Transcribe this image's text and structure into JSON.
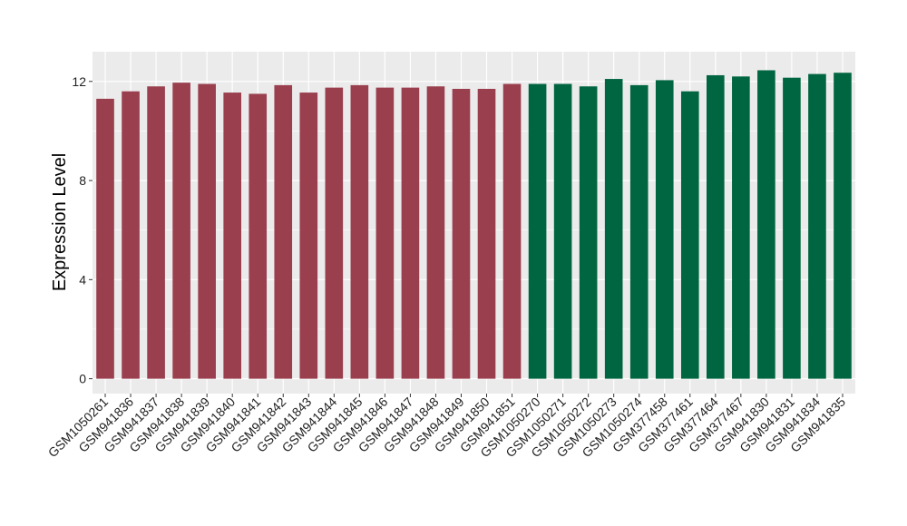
{
  "chart_data": {
    "type": "bar",
    "title": "",
    "xlabel": "",
    "ylabel": "Expression Level",
    "ylim": [
      -0.6,
      13.2
    ],
    "yticks": [
      0,
      4,
      8,
      12
    ],
    "grid": true,
    "legend": "none",
    "colors": {
      "group1": "#9a3f4e",
      "group2": "#006641",
      "panel": "#ebebeb",
      "grid": "#ffffff"
    },
    "categories": [
      "GSM1050261",
      "GSM941836",
      "GSM941837",
      "GSM941838",
      "GSM941839",
      "GSM941840",
      "GSM941841",
      "GSM941842",
      "GSM941843",
      "GSM941844",
      "GSM941845",
      "GSM941846",
      "GSM941847",
      "GSM941848",
      "GSM941849",
      "GSM941850",
      "GSM941851",
      "GSM1050270",
      "GSM1050271",
      "GSM1050272",
      "GSM1050273",
      "GSM1050274",
      "GSM377458",
      "GSM377461",
      "GSM377464",
      "GSM377467",
      "GSM941830",
      "GSM941831",
      "GSM941834",
      "GSM941835"
    ],
    "values": [
      11.3,
      11.6,
      11.8,
      11.95,
      11.9,
      11.55,
      11.5,
      11.85,
      11.55,
      11.75,
      11.85,
      11.75,
      11.75,
      11.8,
      11.7,
      11.7,
      11.9,
      11.9,
      11.9,
      11.8,
      12.1,
      11.85,
      12.05,
      11.6,
      12.25,
      12.2,
      12.45,
      12.15,
      12.3,
      12.35
    ],
    "groups": [
      1,
      1,
      1,
      1,
      1,
      1,
      1,
      1,
      1,
      1,
      1,
      1,
      1,
      1,
      1,
      1,
      1,
      2,
      2,
      2,
      2,
      2,
      2,
      2,
      2,
      2,
      2,
      2,
      2,
      2
    ]
  }
}
